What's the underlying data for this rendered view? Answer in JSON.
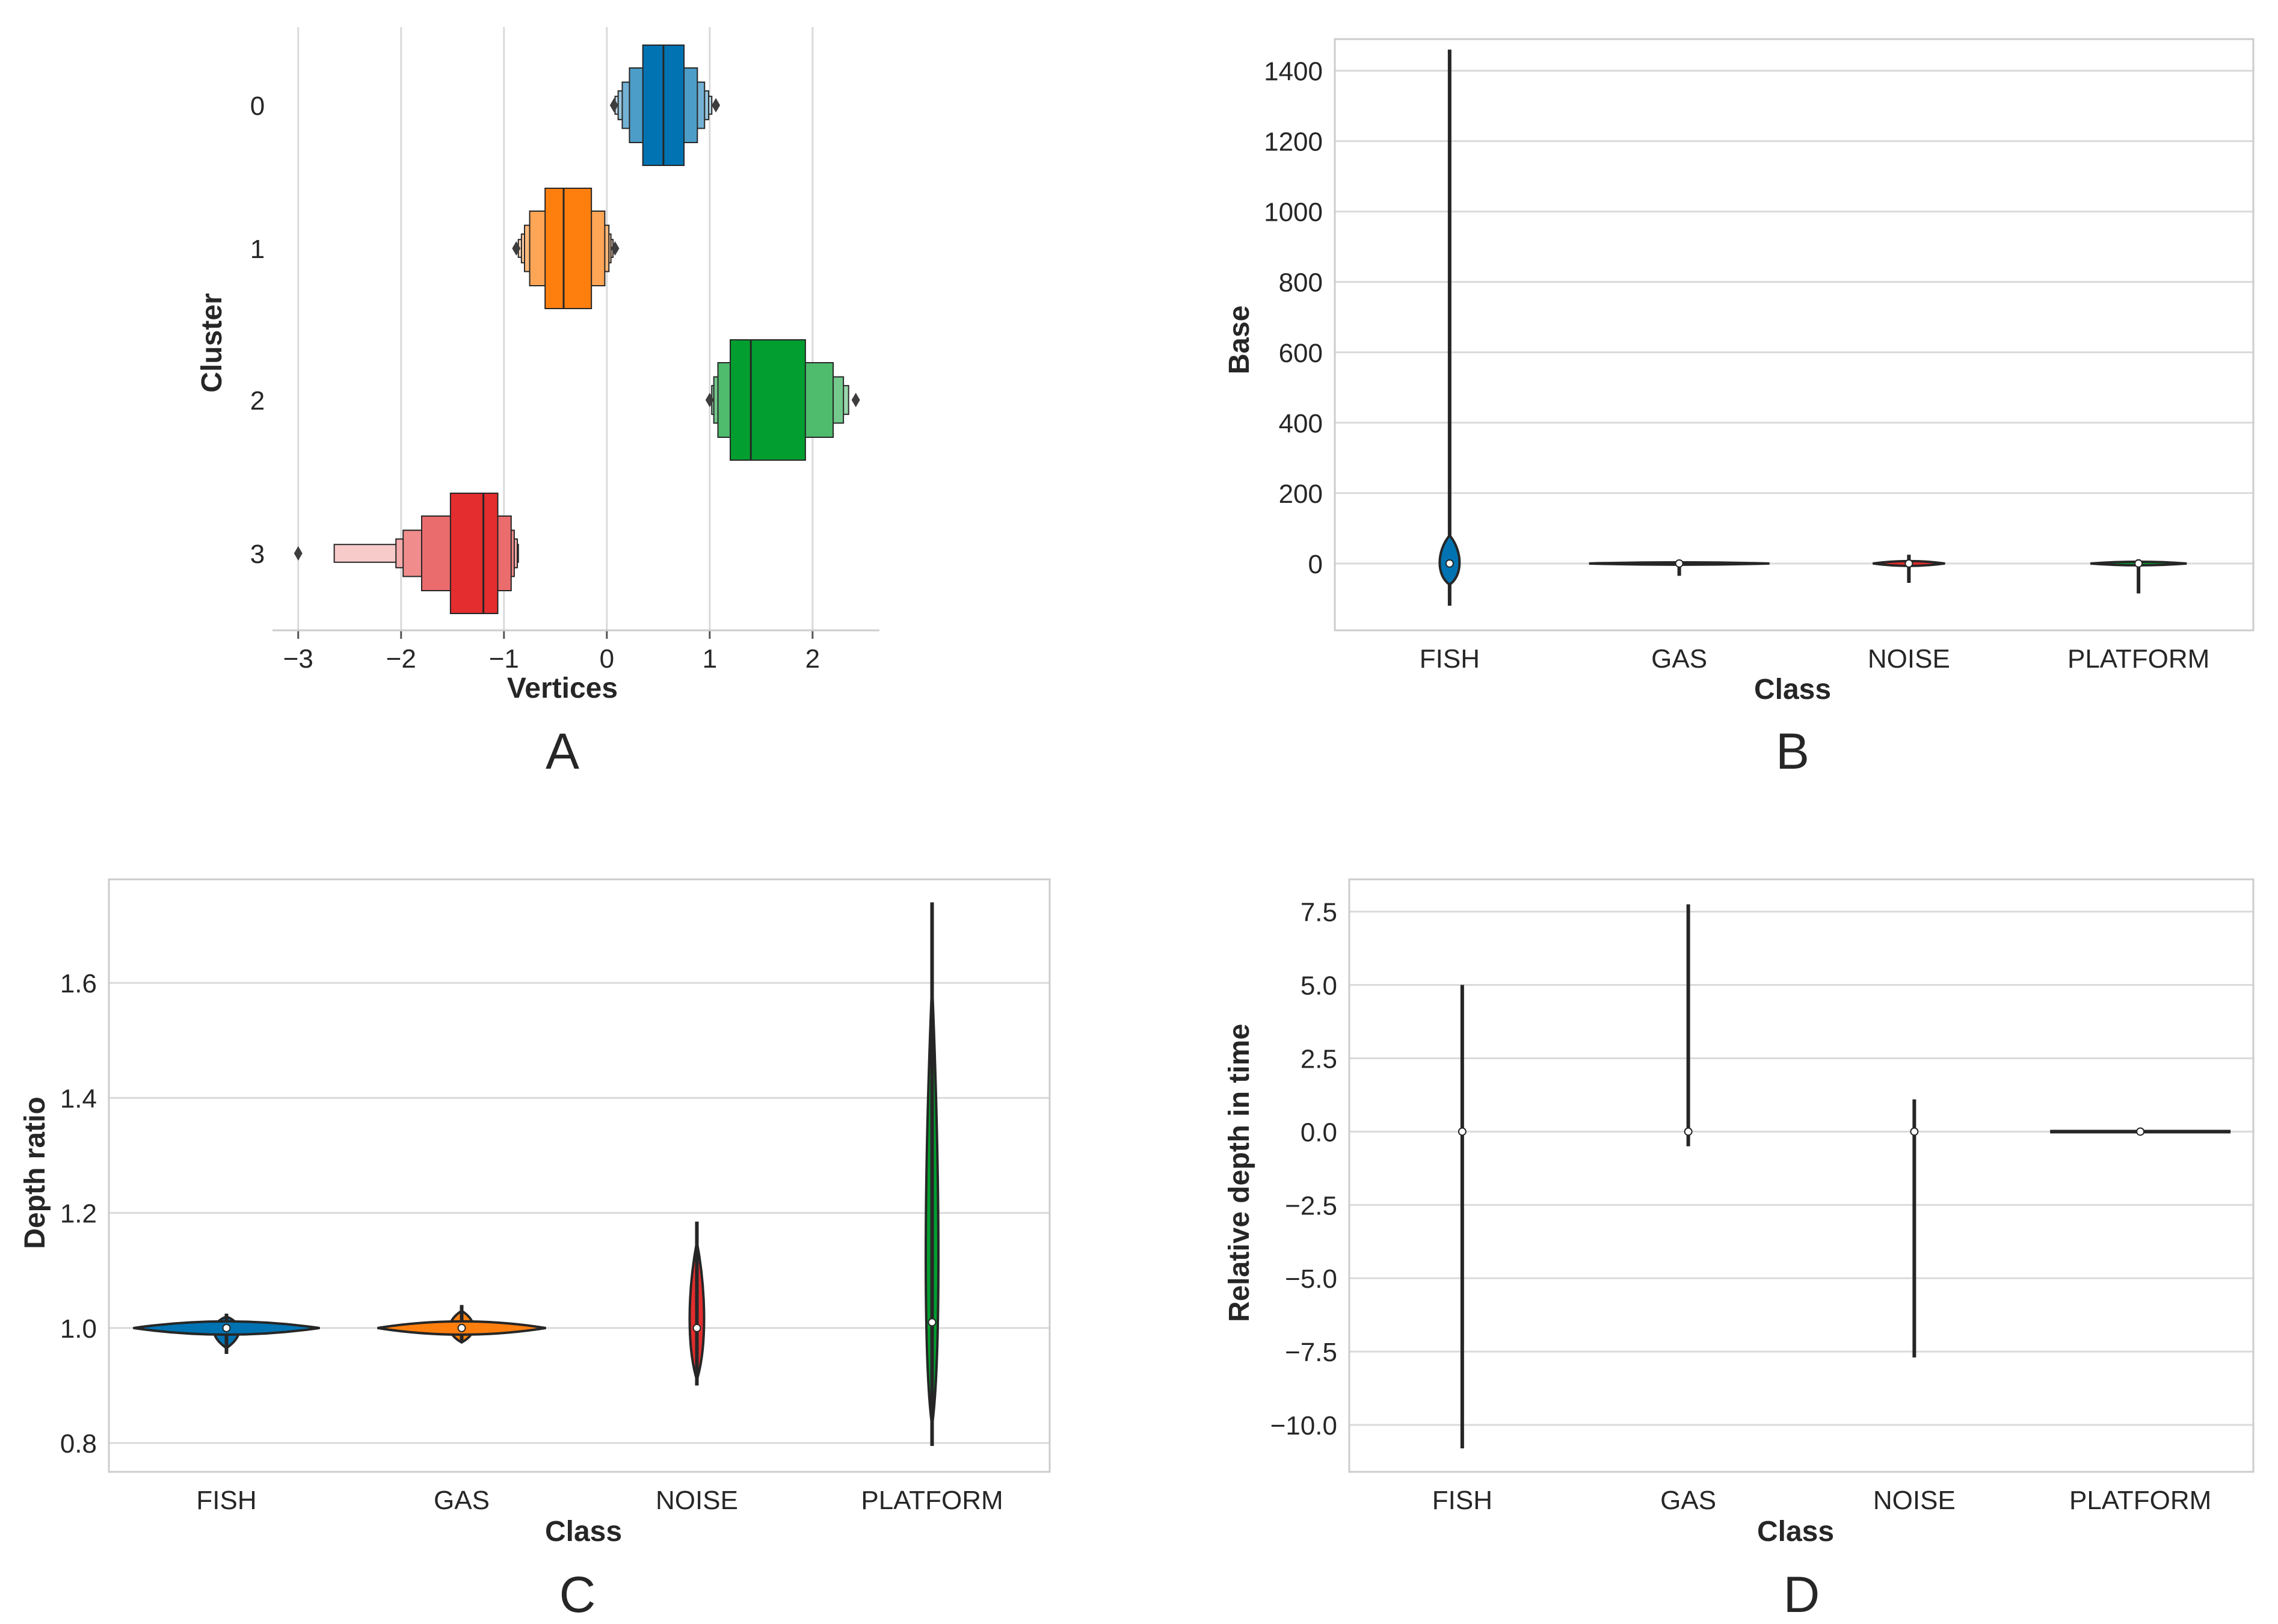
{
  "chart_data": [
    {
      "panel": "A",
      "type": "boxen",
      "orientation": "horizontal",
      "xlabel": "Vertices",
      "ylabel": "Cluster",
      "xlim": [
        -3.25,
        2.65
      ],
      "xticks": [
        -3,
        -2,
        -1,
        0,
        1,
        2
      ],
      "xtick_labels": [
        "−3",
        "−2",
        "−1",
        "0",
        "1",
        "2"
      ],
      "categories": [
        "0",
        "1",
        "2",
        "3"
      ],
      "series": [
        {
          "name": "0",
          "color": "#0173b2",
          "median": 0.55,
          "levels": [
            [
              0.35,
              0.75
            ],
            [
              0.22,
              0.88
            ],
            [
              0.15,
              0.95
            ],
            [
              0.11,
              0.99
            ],
            [
              0.08,
              1.02
            ]
          ],
          "outliers": [
            0.07,
            1.06
          ]
        },
        {
          "name": "1",
          "color": "#ff7f0e",
          "median": -0.42,
          "levels": [
            [
              -0.6,
              -0.15
            ],
            [
              -0.75,
              -0.02
            ],
            [
              -0.8,
              0.02
            ],
            [
              -0.83,
              0.04
            ],
            [
              -0.86,
              0.06
            ]
          ],
          "outliers": [
            -0.88,
            0.08
          ]
        },
        {
          "name": "2",
          "color": "#029e2f",
          "median": 1.4,
          "levels": [
            [
              1.2,
              1.93
            ],
            [
              1.08,
              2.2
            ],
            [
              1.04,
              2.3
            ],
            [
              1.02,
              2.35
            ]
          ],
          "outliers": [
            1.0,
            2.42
          ]
        },
        {
          "name": "3",
          "color": "#e32d2e",
          "median": -1.2,
          "levels": [
            [
              -1.52,
              -1.06
            ],
            [
              -1.8,
              -0.93
            ],
            [
              -1.98,
              -0.9
            ],
            [
              -2.05,
              -0.87
            ],
            [
              -2.65,
              -0.86
            ]
          ],
          "outliers": [
            -3.0
          ]
        }
      ]
    },
    {
      "panel": "B",
      "type": "violin",
      "xlabel": "Class",
      "ylabel": "Base",
      "ylim": [
        -190,
        1490
      ],
      "yticks": [
        0,
        200,
        400,
        600,
        800,
        1000,
        1200,
        1400
      ],
      "categories": [
        "FISH",
        "GAS",
        "NOISE",
        "PLATFORM"
      ],
      "series": [
        {
          "name": "FISH",
          "color": "#0173b2",
          "min": -120,
          "max": 1460,
          "median": 0
        },
        {
          "name": "GAS",
          "color": "#ff7f0e",
          "min": -35,
          "max": 8,
          "median": 0
        },
        {
          "name": "NOISE",
          "color": "#e32d2e",
          "min": -55,
          "max": 25,
          "median": 0
        },
        {
          "name": "PLATFORM",
          "color": "#029e2f",
          "min": -85,
          "max": 12,
          "median": 0
        }
      ]
    },
    {
      "panel": "C",
      "type": "violin",
      "xlabel": "Class",
      "ylabel": "Depth ratio",
      "ylim": [
        0.75,
        1.78
      ],
      "yticks": [
        0.8,
        1.0,
        1.2,
        1.4,
        1.6
      ],
      "ytick_labels": [
        "0.8",
        "1.0",
        "1.2",
        "1.4",
        "1.6"
      ],
      "categories": [
        "FISH",
        "GAS",
        "NOISE",
        "PLATFORM"
      ],
      "series": [
        {
          "name": "FISH",
          "color": "#0173b2",
          "min": 0.955,
          "max": 1.025,
          "median": 1.0
        },
        {
          "name": "GAS",
          "color": "#ff7f0e",
          "min": 0.975,
          "max": 1.04,
          "median": 1.0
        },
        {
          "name": "NOISE",
          "color": "#e32d2e",
          "min": 0.9,
          "max": 1.185,
          "median": 1.0
        },
        {
          "name": "PLATFORM",
          "color": "#029e2f",
          "min": 0.795,
          "max": 1.74,
          "median": 1.01
        }
      ]
    },
    {
      "panel": "D",
      "type": "violin",
      "xlabel": "Class",
      "ylabel": "Relative depth in time",
      "ylim": [
        -11.6,
        8.6
      ],
      "yticks": [
        -10.0,
        -7.5,
        -5.0,
        -2.5,
        0.0,
        2.5,
        5.0,
        7.5
      ],
      "ytick_labels": [
        "−10.0",
        "−7.5",
        "−5.0",
        "−2.5",
        "0.0",
        "2.5",
        "5.0",
        "7.5"
      ],
      "categories": [
        "FISH",
        "GAS",
        "NOISE",
        "PLATFORM"
      ],
      "series": [
        {
          "name": "FISH",
          "color": "#0173b2",
          "min": -10.8,
          "max": 5.0,
          "median": 0.0
        },
        {
          "name": "GAS",
          "color": "#ff7f0e",
          "min": -0.5,
          "max": 7.75,
          "median": 0.0
        },
        {
          "name": "NOISE",
          "color": "#e32d2e",
          "min": -7.7,
          "max": 1.1,
          "median": 0.0
        },
        {
          "name": "PLATFORM",
          "color": "#029e2f",
          "min": 0.0,
          "max": 0.0,
          "median": 0.0
        }
      ]
    }
  ],
  "panel_labels": [
    "A",
    "B",
    "C",
    "D"
  ]
}
